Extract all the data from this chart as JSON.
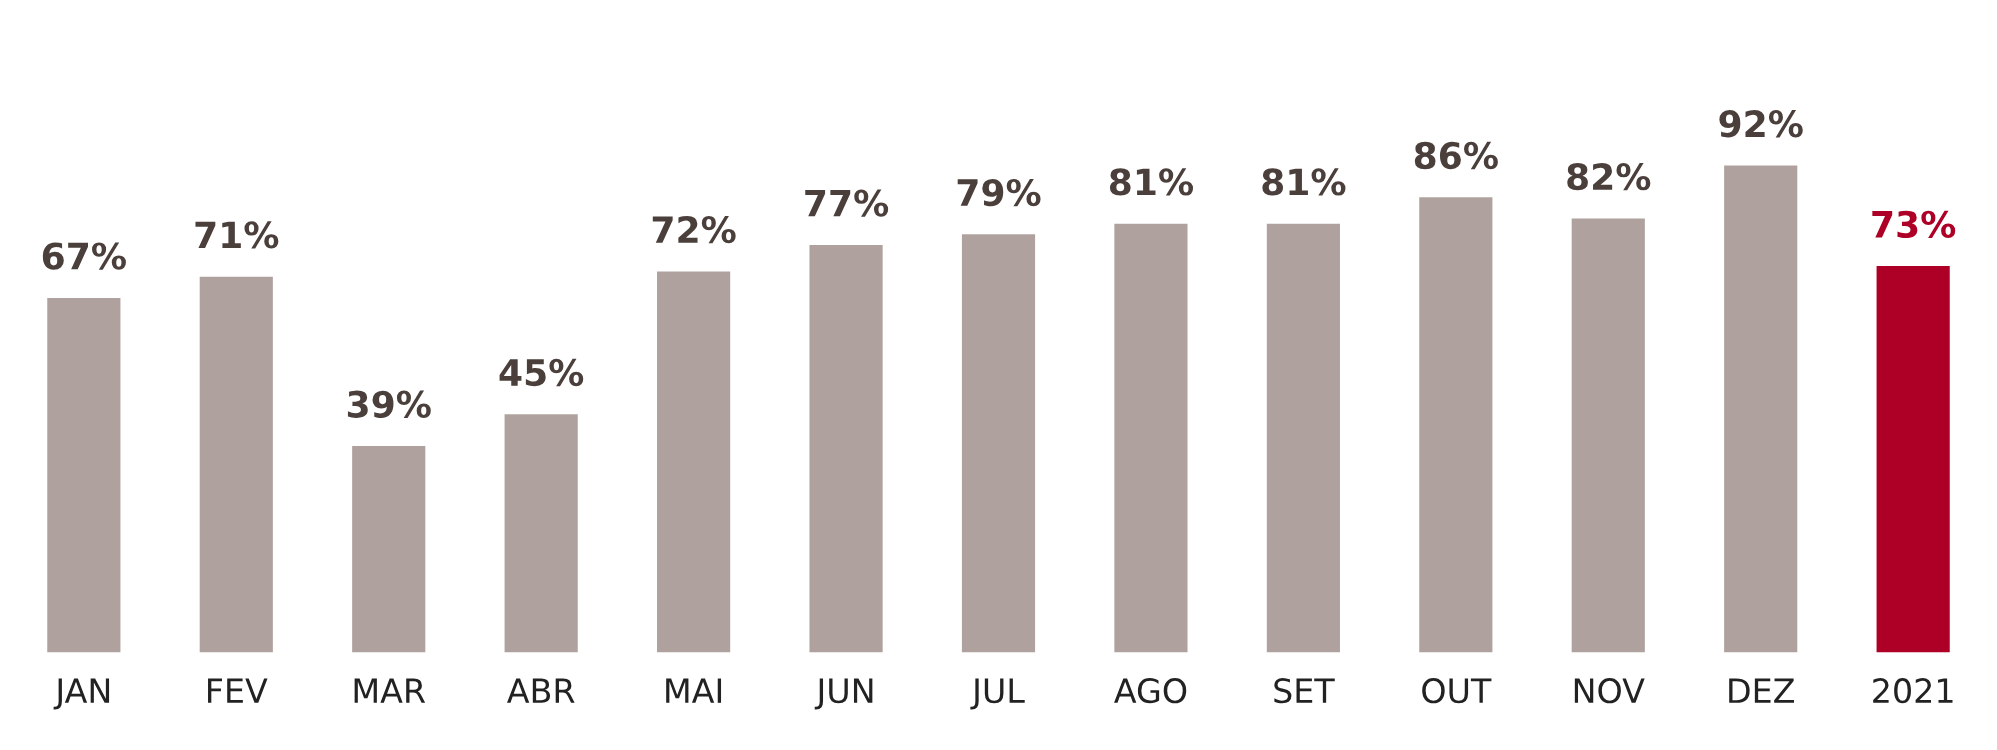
{
  "chart_data": {
    "type": "bar",
    "categories": [
      "JAN",
      "FEV",
      "MAR",
      "ABR",
      "MAI",
      "JUN",
      "JUL",
      "AGO",
      "SET",
      "OUT",
      "NOV",
      "DEZ",
      "2021"
    ],
    "values": [
      67,
      71,
      39,
      45,
      72,
      77,
      79,
      81,
      81,
      86,
      82,
      92,
      73
    ],
    "value_labels": [
      "67%",
      "71%",
      "39%",
      "45%",
      "72%",
      "77%",
      "79%",
      "81%",
      "81%",
      "86%",
      "82%",
      "92%",
      "73%"
    ],
    "colors": [
      "#afa29e",
      "#afa29e",
      "#afa29e",
      "#afa29e",
      "#afa29e",
      "#afa29e",
      "#afa29e",
      "#afa29e",
      "#afa29e",
      "#afa29e",
      "#afa29e",
      "#afa29e",
      "#ae0026"
    ],
    "grid": false,
    "legend": false
  }
}
